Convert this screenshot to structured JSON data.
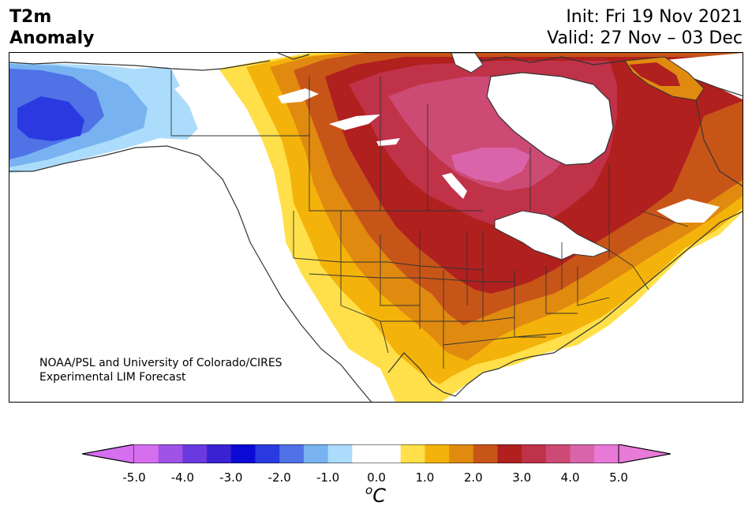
{
  "header": {
    "title_line1": "T2m",
    "title_line2": "Anomaly",
    "init": "Init: Fri 19 Nov 2021",
    "valid": "Valid: 27 Nov – 03 Dec"
  },
  "credit": {
    "line1": "NOAA/PSL and University of Colorado/CIRES",
    "line2": "Experimental LIM Forecast"
  },
  "colorbar": {
    "min_color": "#d66ef0",
    "max_color": "#e87ad8",
    "colors": [
      "#d66ef0",
      "#a052e6",
      "#6a3ae0",
      "#3a22d2",
      "#0a0ad4",
      "#2a3ae0",
      "#4f72e6",
      "#78b2f0",
      "#acdcfc",
      "#ffffff",
      "#ffffff",
      "#ffe04a",
      "#f4b30a",
      "#e08a10",
      "#c85518",
      "#b0201e",
      "#c03248",
      "#cc4a74",
      "#da64aa",
      "#e87ad8"
    ],
    "ticks": [
      "-5.0",
      "-4.0",
      "-3.0",
      "-2.0",
      "-1.0",
      "0.0",
      "1.0",
      "2.0",
      "3.0",
      "4.0",
      "5.0"
    ],
    "unit_base": "C",
    "unit_sup": "o"
  },
  "legend_colors": {
    "cold_strong": "#2a3ae0",
    "cold": "#4f72e6",
    "cool": "#78b2f0",
    "cool_light": "#acdcfc",
    "warm_light": "#ffe04a",
    "warm": "#f4b30a",
    "warm_orange": "#e08a10",
    "hot": "#c85518",
    "hotter": "#b0201e",
    "hottest": "#c03248",
    "very_hot": "#cc4a74",
    "extreme": "#da64aa"
  }
}
